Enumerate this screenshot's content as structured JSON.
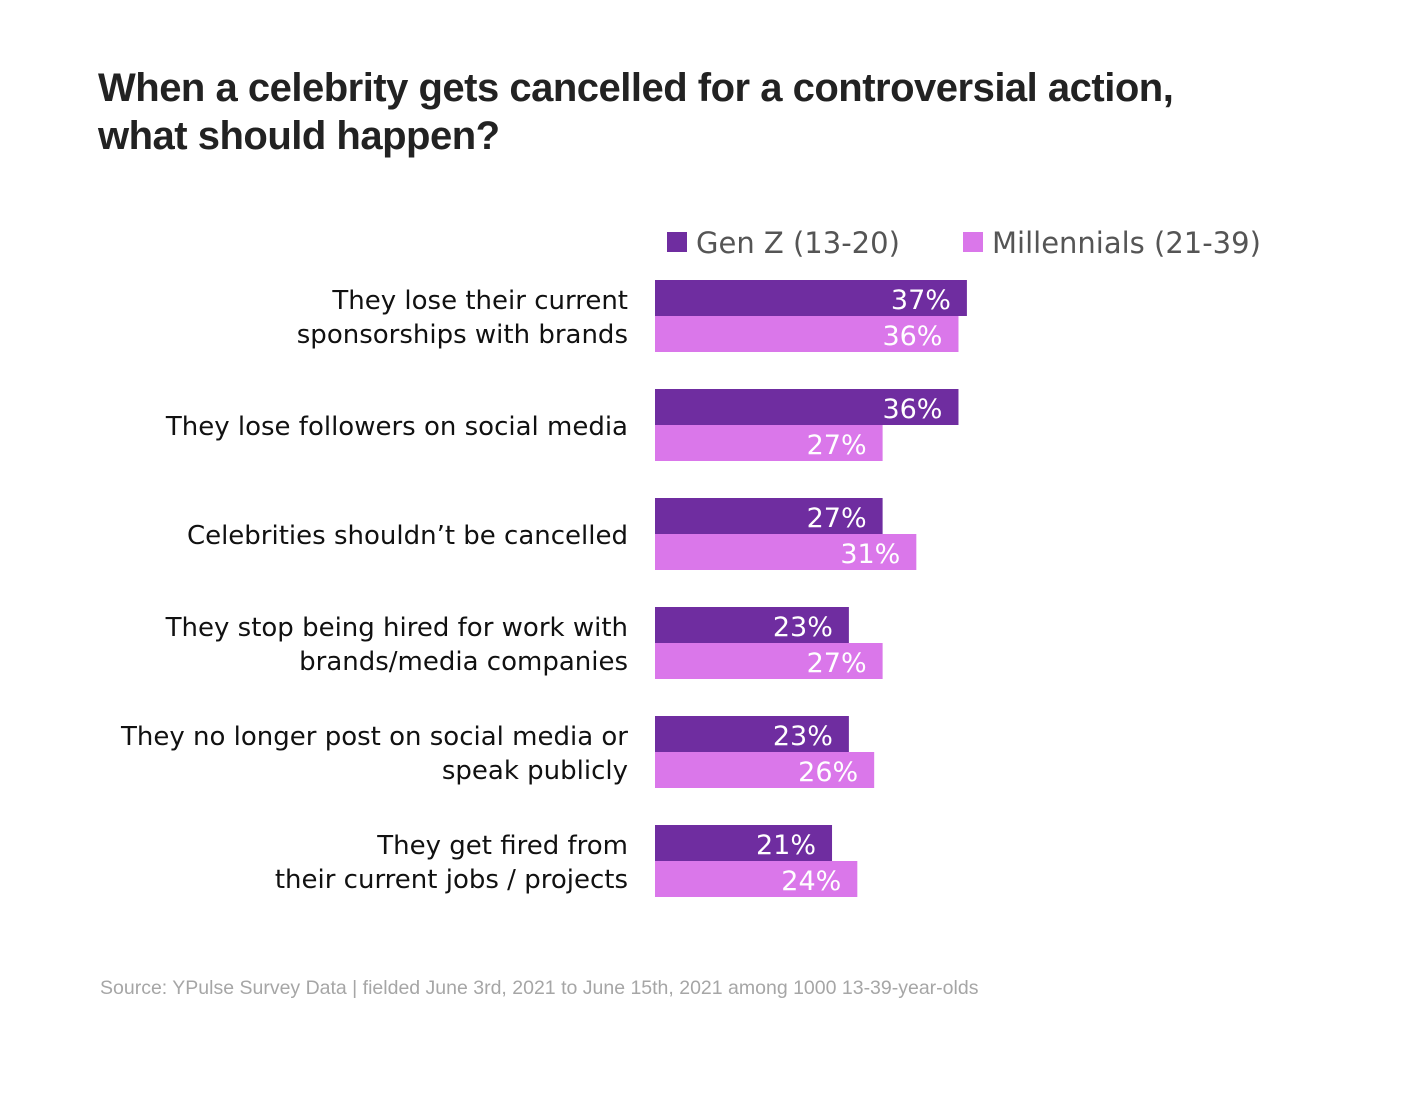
{
  "title_lines": [
    "When a celebrity gets cancelled for a controversial action,",
    "what should happen?"
  ],
  "source": "Source: YPulse Survey Data | fielded June 3rd, 2021 to June 15th, 2021 among 1000 13-39-year-olds",
  "chart_data": {
    "type": "bar",
    "orientation": "horizontal",
    "title": "When a celebrity gets cancelled for a controversial action, what should happen?",
    "categories": [
      [
        "They lose their current",
        "sponsorships with brands"
      ],
      [
        "They lose followers on social media"
      ],
      [
        "Celebrities shouldn’t be cancelled"
      ],
      [
        "They stop being hired for work with",
        "brands/media companies"
      ],
      [
        "They no longer post on social media or",
        "speak publicly"
      ],
      [
        "They get fired from",
        "their current jobs / projects"
      ]
    ],
    "series": [
      {
        "name": "Gen Z (13-20)",
        "color": "#6f2da0",
        "values": [
          37,
          36,
          27,
          23,
          23,
          21
        ]
      },
      {
        "name": "Millennials (21-39)",
        "color": "#da77ea",
        "values": [
          36,
          27,
          31,
          27,
          26,
          24
        ]
      }
    ],
    "value_suffix": "%",
    "xlim": [
      0,
      100
    ],
    "legend": "top",
    "grid": false,
    "axes_visible": false
  }
}
